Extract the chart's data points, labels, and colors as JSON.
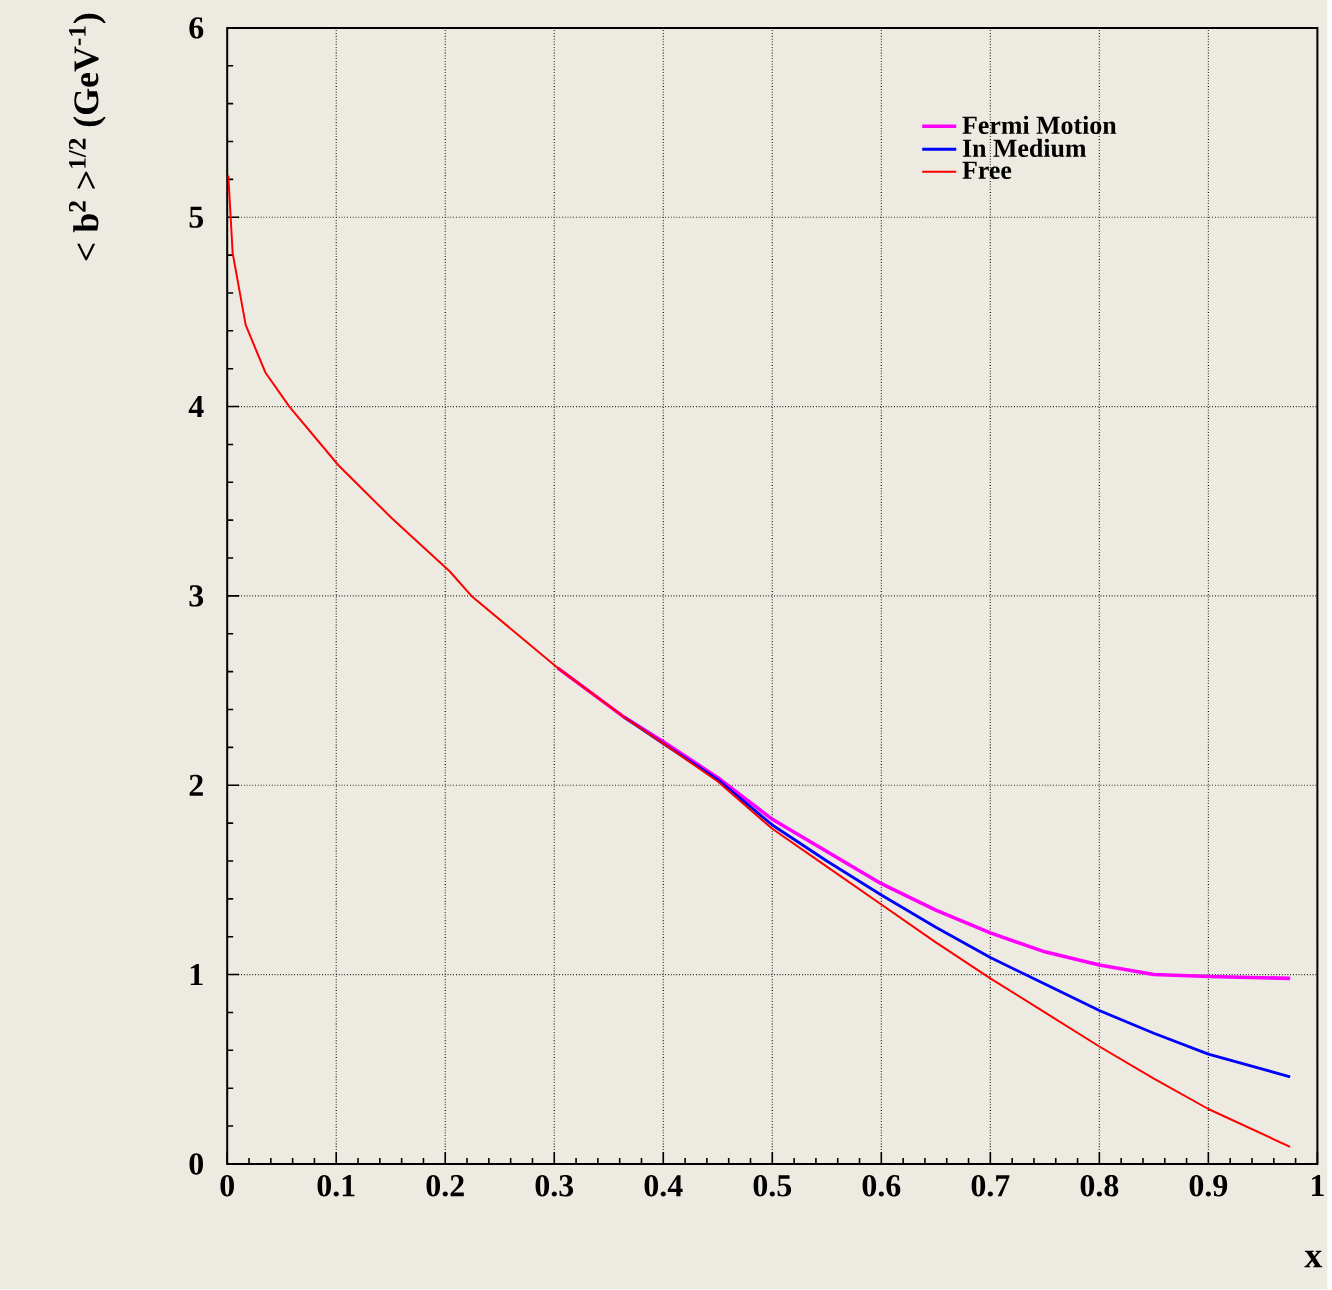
{
  "chart_data": {
    "type": "line",
    "xlabel": "x",
    "ylabel": "< b$^{2}$ >$^{1/2}$ (GeV$^{-1}$)",
    "xlim": [
      0,
      1
    ],
    "ylim": [
      0,
      6
    ],
    "xticks": [
      0,
      0.1,
      0.2,
      0.3,
      0.4,
      0.5,
      0.6,
      0.7,
      0.8,
      0.9,
      1
    ],
    "yticks": [
      0,
      1,
      2,
      3,
      4,
      5,
      6
    ],
    "grid": true,
    "legend": "top right",
    "marker": "none",
    "line_style": "solid",
    "x": [
      0.001,
      0.005,
      0.017,
      0.035,
      0.057,
      0.102,
      0.151,
      0.204,
      0.224,
      0.303,
      0.364,
      0.4,
      0.45,
      0.5,
      0.55,
      0.6,
      0.65,
      0.7,
      0.75,
      0.8,
      0.85,
      0.9,
      0.975
    ],
    "series": [
      {
        "name": "Fermi Motion",
        "color": "#ff00ff",
        "values": [
          null,
          null,
          null,
          null,
          null,
          null,
          null,
          null,
          null,
          2.62,
          2.36,
          2.23,
          2.04,
          1.82,
          1.65,
          1.48,
          1.34,
          1.22,
          1.12,
          1.05,
          1.0,
          0.99,
          0.98
        ]
      },
      {
        "name": "In Medium",
        "color": "#0000ff",
        "values": [
          null,
          null,
          null,
          null,
          null,
          null,
          null,
          null,
          null,
          null,
          2.36,
          2.22,
          2.03,
          1.79,
          1.6,
          1.42,
          1.25,
          1.09,
          0.95,
          0.81,
          0.69,
          0.58,
          0.46
        ]
      },
      {
        "name": "Free",
        "color": "#ff0000",
        "values": [
          5.22,
          4.81,
          4.43,
          4.18,
          4.0,
          3.69,
          3.41,
          3.13,
          3.0,
          2.62,
          2.36,
          2.22,
          2.02,
          1.77,
          1.57,
          1.37,
          1.17,
          0.98,
          0.8,
          0.62,
          0.45,
          0.29,
          0.09
        ]
      }
    ]
  }
}
